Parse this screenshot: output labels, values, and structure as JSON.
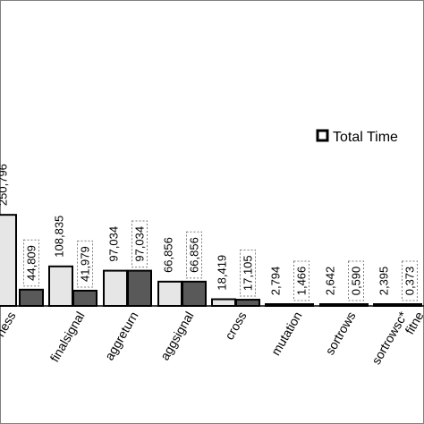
{
  "chart_data": {
    "type": "bar",
    "categories": [
      "fitness",
      "finalsignal",
      "aggreturn",
      "aggsignal",
      "cross",
      "mutation",
      "sortrows",
      "sortrowsc*",
      "fitness"
    ],
    "visible_category_text": [
      "ness",
      "finalsignal",
      "aggreturn",
      "aggsignal",
      "cross",
      "mutation",
      "sortrows",
      "sortrowsc*",
      "fitne"
    ],
    "series": [
      {
        "values": [
          250.796,
          108.835,
          97.034,
          66.856,
          18.419,
          2.794,
          2.642,
          2.395,
          null
        ],
        "labels": [
          "250,796",
          "108,835",
          "97,034",
          "66,856",
          "18,419",
          "2,794",
          "2,642",
          "2,395",
          ""
        ],
        "color": "#e6e6e6"
      },
      {
        "name": "Total Time",
        "values": [
          44.809,
          41.979,
          97.034,
          66.856,
          17.105,
          1.466,
          0.59,
          0.373,
          null
        ],
        "labels": [
          "44,809",
          "41,979",
          "97,034",
          "66,856",
          "17,105",
          "1,466",
          "0,590",
          "0,373",
          ""
        ],
        "color": "#595959"
      }
    ],
    "legend": {
      "label": "Total Time",
      "position": "right"
    },
    "grid": false
  }
}
